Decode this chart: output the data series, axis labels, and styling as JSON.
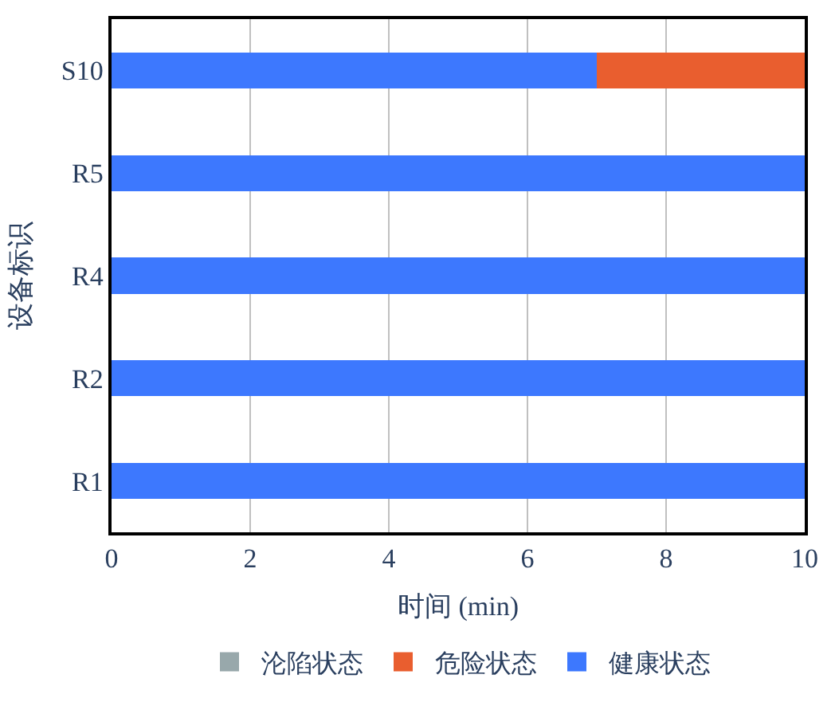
{
  "chart_data": {
    "type": "bar",
    "orientation": "horizontal",
    "stacked": true,
    "xlabel": "时间 (min)",
    "ylabel": "设备标识",
    "categories": [
      "S10",
      "R5",
      "R4",
      "R2",
      "R1"
    ],
    "series": [
      {
        "name": "健康状态",
        "color": "#3d78fe",
        "values": [
          7,
          10,
          10,
          10,
          10
        ]
      },
      {
        "name": "危险状态",
        "color": "#e95e2f",
        "values": [
          3,
          0,
          0,
          0,
          0
        ]
      },
      {
        "name": "沦陷状态",
        "color": "#98a8ab",
        "values": [
          0,
          0,
          0,
          0,
          0
        ]
      }
    ],
    "xlim": [
      0,
      10
    ],
    "xticks": [
      0,
      2,
      4,
      6,
      8,
      10
    ],
    "grid": "x",
    "legend": "bottom"
  }
}
